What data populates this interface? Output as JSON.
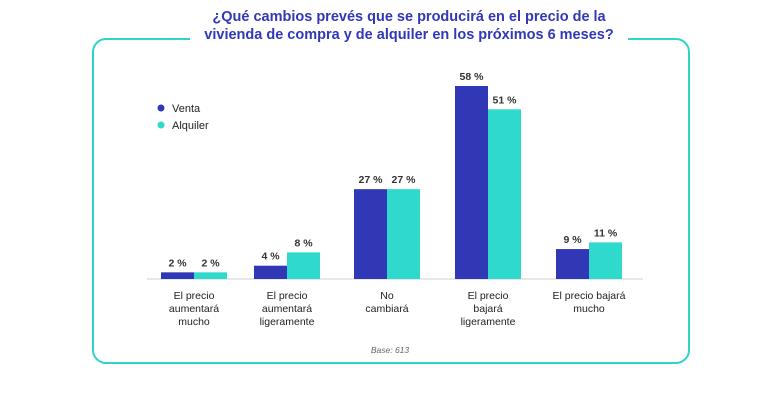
{
  "title": "¿Qué cambios prevés que se producirá en el precio de la vivienda de compra y de alquiler en los próximos 6 meses?",
  "colors": {
    "frame": "#2fd3c8",
    "title": "#3138b6",
    "venta": "#3138b6",
    "alquiler": "#2fd9cc"
  },
  "chart_data": {
    "type": "bar",
    "title": "¿Qué cambios prevés que se producirá en el precio de la vivienda de compra y de alquiler en los próximos 6 meses?",
    "categories": [
      [
        "El precio",
        "aumentará",
        "mucho"
      ],
      [
        "El precio",
        "aumentará",
        "ligeramente"
      ],
      [
        "No",
        "cambiará"
      ],
      [
        "El precio",
        "bajará",
        "ligeramente"
      ],
      [
        "El precio bajará",
        "mucho"
      ]
    ],
    "series": [
      {
        "name": "Venta",
        "values": [
          2,
          4,
          27,
          58,
          9
        ],
        "labels": [
          "2 %",
          "4 %",
          "27 %",
          "58 %",
          "9 %"
        ],
        "color": "#3138b6"
      },
      {
        "name": "Alquiler",
        "values": [
          2,
          8,
          27,
          51,
          11
        ],
        "labels": [
          "2 %",
          "8 %",
          "27 %",
          "51 %",
          "11 %"
        ],
        "color": "#2fd9cc"
      }
    ],
    "ylim": [
      0,
      58
    ],
    "grid": false,
    "legend": "top-left",
    "note": "Base: 613"
  }
}
